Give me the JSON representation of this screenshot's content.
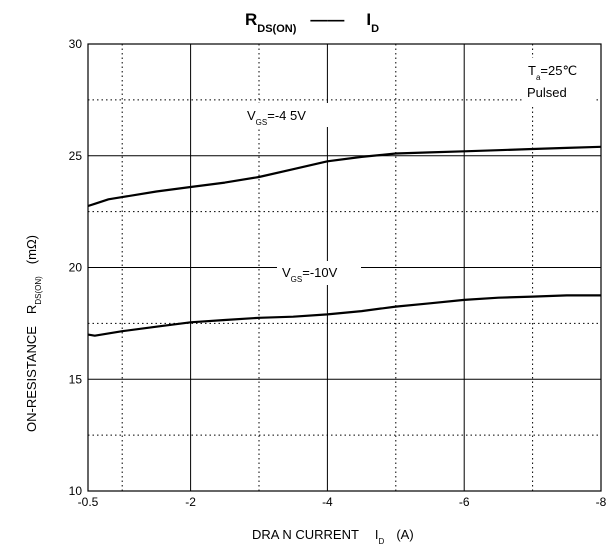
{
  "chart_data": {
    "type": "line",
    "title": {
      "left_main": "R",
      "left_sub": "DS(ON)",
      "sep": "——",
      "right_main": "I",
      "right_sub": "D"
    },
    "xlabel": {
      "main": "DRA N CURRENT",
      "sym": "I",
      "sub": "D",
      "unit": "(A)"
    },
    "ylabel": {
      "main": "ON-RESISTANCE",
      "sym": "R",
      "sub": "DS(ON)",
      "unit": "(mΩ)"
    },
    "xlim": [
      -0.5,
      -8
    ],
    "ylim": [
      10,
      30
    ],
    "x_ticks": [
      -0.5,
      -2,
      -4,
      -6,
      -8
    ],
    "x_tick_labels": [
      "-0.5",
      "-2",
      "-4",
      "-6",
      "-8"
    ],
    "y_ticks": [
      10,
      15,
      20,
      25,
      30
    ],
    "y_tick_labels": [
      "10",
      "15",
      "20",
      "25",
      "30"
    ],
    "x_minor_grid": [
      -1,
      -3,
      -5,
      -7
    ],
    "y_minor_grid": [
      12.5,
      17.5,
      22.5,
      27.5
    ],
    "grid": true,
    "condition": {
      "t_main": "T",
      "t_sub": "a",
      "t_value": "=25℃",
      "pulsed": "Pulsed"
    },
    "series": [
      {
        "label_main": "V",
        "label_sub": "GS",
        "label_value": "=-4 5V",
        "x": [
          -0.5,
          -0.6,
          -0.8,
          -1.0,
          -1.5,
          -2.0,
          -2.5,
          -3.0,
          -3.5,
          -4.0,
          -4.5,
          -5.0,
          -5.5,
          -6.0,
          -6.5,
          -7.0,
          -7.5,
          -8.0
        ],
        "y": [
          22.75,
          22.85,
          23.05,
          23.15,
          23.4,
          23.6,
          23.8,
          24.05,
          24.4,
          24.75,
          24.95,
          25.1,
          25.15,
          25.2,
          25.25,
          25.3,
          25.35,
          25.4
        ]
      },
      {
        "label_main": "V",
        "label_sub": "GS",
        "label_value": "=-10V",
        "x": [
          -0.5,
          -0.6,
          -0.8,
          -1.0,
          -1.5,
          -2.0,
          -2.5,
          -3.0,
          -3.5,
          -4.0,
          -4.5,
          -5.0,
          -5.5,
          -6.0,
          -6.5,
          -7.0,
          -7.5,
          -8.0
        ],
        "y": [
          17.0,
          16.95,
          17.05,
          17.15,
          17.35,
          17.55,
          17.65,
          17.75,
          17.8,
          17.9,
          18.05,
          18.25,
          18.4,
          18.55,
          18.65,
          18.7,
          18.75,
          18.75
        ]
      }
    ]
  }
}
